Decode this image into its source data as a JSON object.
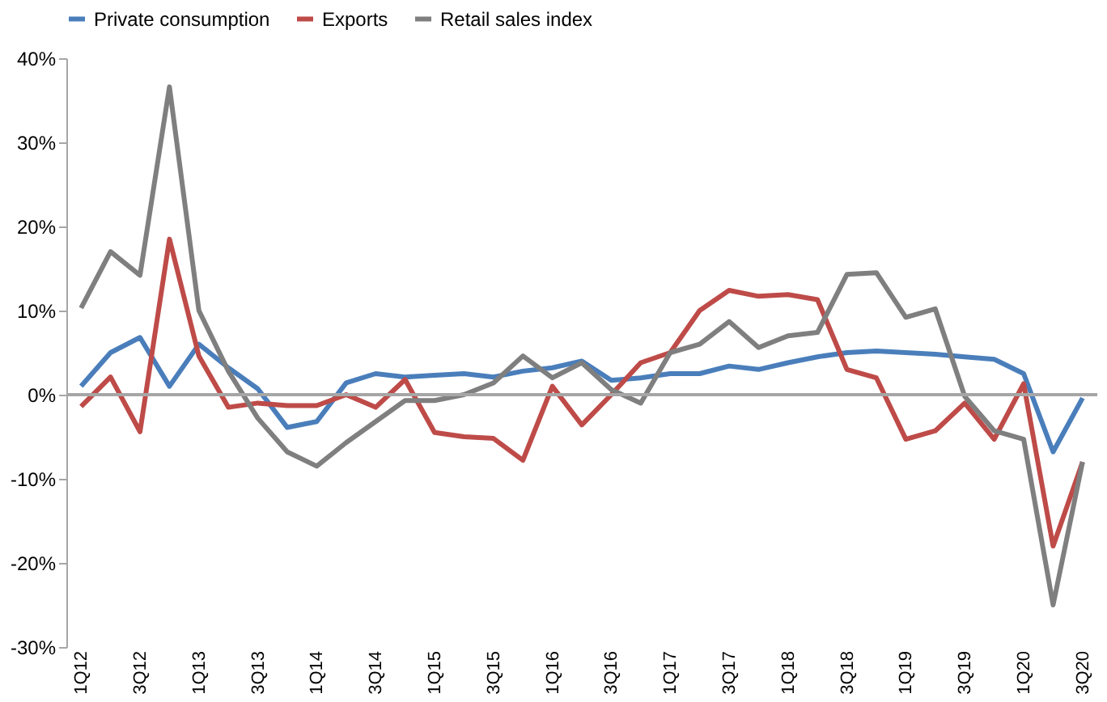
{
  "chart_data": {
    "type": "line",
    "categories": [
      "1Q12",
      null,
      "3Q12",
      null,
      "1Q13",
      null,
      "3Q13",
      null,
      "1Q14",
      null,
      "3Q14",
      null,
      "1Q15",
      null,
      "3Q15",
      null,
      "1Q16",
      null,
      "3Q16",
      null,
      "1Q17",
      null,
      "3Q17",
      null,
      "1Q18",
      null,
      "3Q18",
      null,
      "1Q19",
      null,
      "3Q19",
      null,
      "1Q20",
      null,
      "3Q20"
    ],
    "series": [
      {
        "name": "Private consumption",
        "color": "#4a7ebb",
        "values": [
          1,
          5,
          6.8,
          1,
          6,
          3.2,
          0.7,
          -3.9,
          -3.2,
          1.4,
          2.5,
          2.1,
          2.3,
          2.5,
          2.1,
          2.8,
          3.2,
          4,
          1.7,
          2,
          2.5,
          2.5,
          3.4,
          3,
          3.8,
          4.5,
          5,
          5.2,
          5,
          4.8,
          4.5,
          4.2,
          2.5,
          -6.8,
          -0.4
        ]
      },
      {
        "name": "Exports",
        "color": "#be4b48",
        "values": [
          -1.4,
          2.1,
          -4.4,
          18.5,
          4.6,
          -1.5,
          -1,
          -1.3,
          -1.3,
          0,
          -1.5,
          1.8,
          -4.5,
          -5,
          -5.2,
          -7.8,
          1,
          -3.6,
          0,
          3.8,
          5,
          10,
          12.4,
          11.7,
          11.9,
          11.3,
          3,
          2,
          -5.3,
          -4.3,
          -1,
          -5.3,
          1.3,
          -18,
          -8
        ]
      },
      {
        "name": "Retail sales index",
        "color": "#7f7f7f",
        "values": [
          10.3,
          17,
          14.2,
          36.6,
          10,
          2.8,
          -2.8,
          -6.8,
          -8.5,
          -5.7,
          -3.2,
          -0.7,
          -0.7,
          0,
          1.4,
          4.6,
          2,
          3.8,
          0.6,
          -1,
          5,
          6,
          8.7,
          5.6,
          7,
          7.4,
          14.3,
          14.5,
          9.2,
          10.2,
          -0.2,
          -4.3,
          -5.3,
          -25,
          -8
        ]
      }
    ],
    "ylim": [
      -30,
      40
    ],
    "yticks": [
      {
        "value": -30,
        "label": "-30%"
      },
      {
        "value": -20,
        "label": "-20%"
      },
      {
        "value": -10,
        "label": "-10%"
      },
      {
        "value": 0,
        "label": "0%"
      },
      {
        "value": 10,
        "label": "10%"
      },
      {
        "value": 20,
        "label": "20%"
      },
      {
        "value": 30,
        "label": "30%"
      },
      {
        "value": 40,
        "label": "40%"
      }
    ],
    "ref_lines": [
      {
        "axis": "y",
        "value": 0,
        "color": "#a6a6a6"
      }
    ],
    "grid": false,
    "legend": "top",
    "marker": "none",
    "line_style": "solid"
  }
}
